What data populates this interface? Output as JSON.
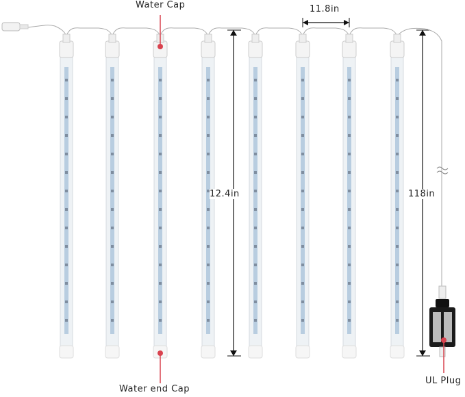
{
  "labels": {
    "water_cap": "Water Cap",
    "water_end_cap": "Water end Cap",
    "ul_plug": "UL Plug",
    "tube_length": "12.4in",
    "tube_spacing": "11.8in",
    "cord_length": "118in"
  },
  "tube_count": 8,
  "colors": {
    "callout": "#d9434f",
    "led_strip": "#b8cde0",
    "tube": "#eef2f5"
  }
}
